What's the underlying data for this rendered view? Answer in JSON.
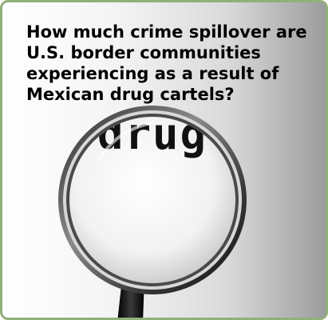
{
  "headline": {
    "text": "How much crime spillover are U.S. border communities experiencing as a result of Mexican drug cartels?"
  },
  "illustration": {
    "icon": "magnifying-glass-icon",
    "magnified_word": "drug"
  },
  "colors": {
    "frame_border": "#8fb07a",
    "gradient_light": "#ffffff",
    "gradient_dark": "#9c9c9c",
    "text": "#000000"
  }
}
